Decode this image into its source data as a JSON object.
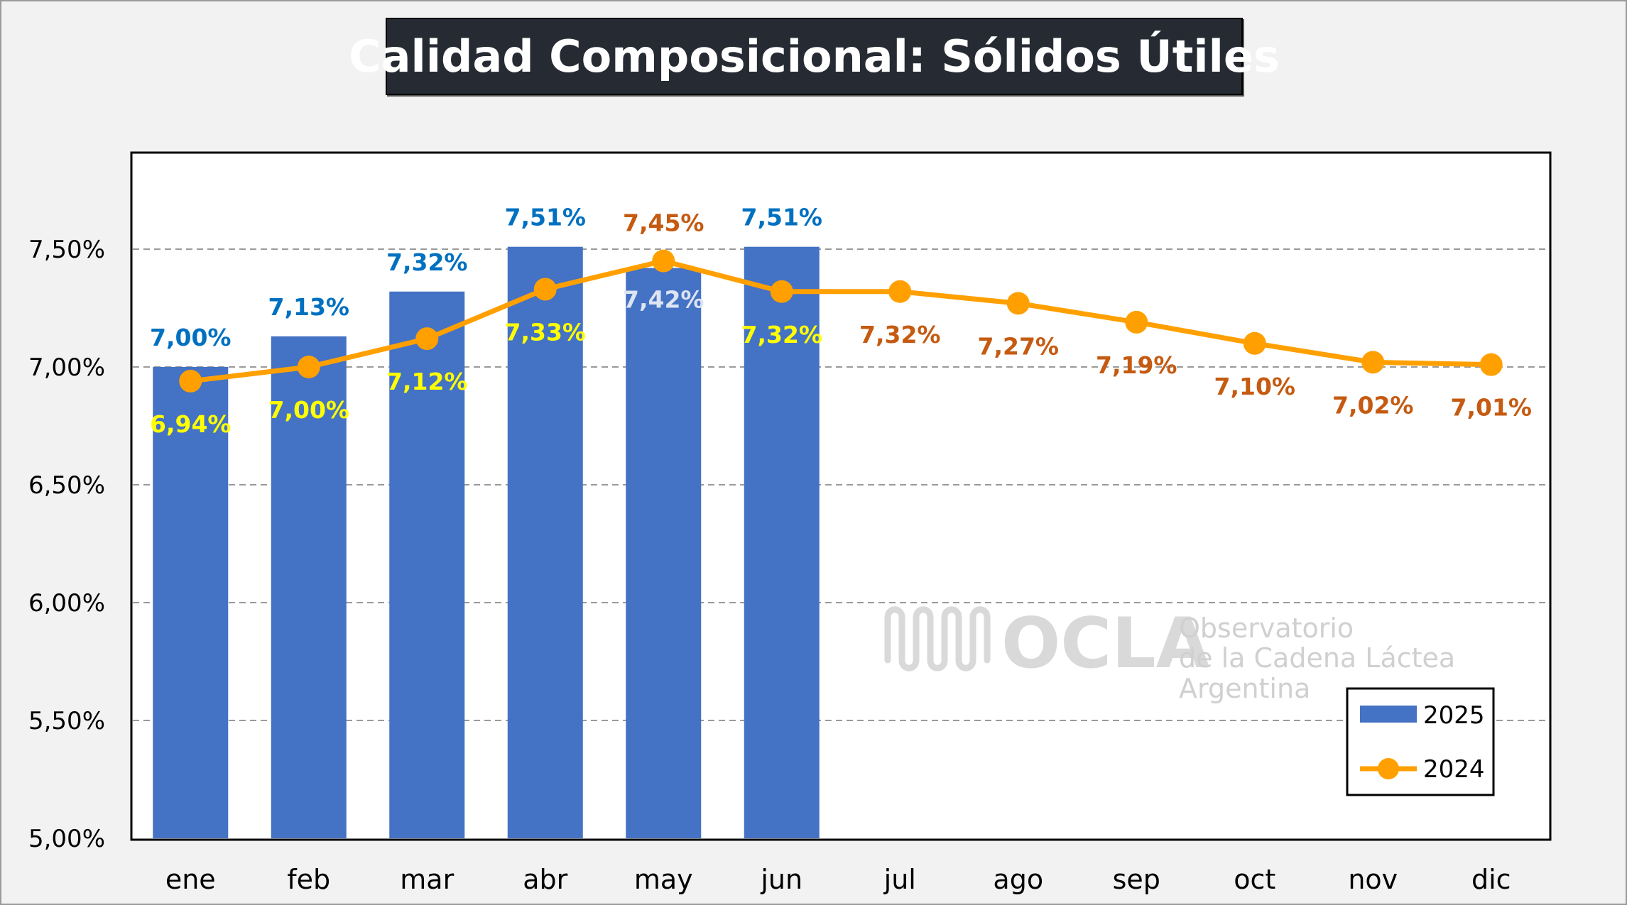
{
  "title": "Calidad Composicional: Sólidos Útiles",
  "watermark": {
    "brand": "OCLA",
    "line1": "Observatorio",
    "line2": "de la Cadena Láctea",
    "line3": "Argentina"
  },
  "colors": {
    "bar": "#4472c4",
    "line": "#ffa000",
    "bar_label": "#0070c0",
    "line_label_inside": "#ffff00",
    "line_label_outside": "#c55a11",
    "grid": "#9a9a9a"
  },
  "chart_data": {
    "type": "bar",
    "categories": [
      "ene",
      "feb",
      "mar",
      "abr",
      "may",
      "jun",
      "jul",
      "ago",
      "sep",
      "oct",
      "nov",
      "dic"
    ],
    "series": [
      {
        "name": "2025",
        "type": "bar",
        "values": [
          7.0,
          7.13,
          7.32,
          7.51,
          7.42,
          7.51,
          null,
          null,
          null,
          null,
          null,
          null
        ],
        "labels": [
          "7,00%",
          "7,13%",
          "7,32%",
          "7,51%",
          "7,42%",
          "7,51%",
          "",
          "",
          "",
          "",
          "",
          ""
        ]
      },
      {
        "name": "2024",
        "type": "line",
        "values": [
          6.94,
          7.0,
          7.12,
          7.33,
          7.45,
          7.32,
          7.32,
          7.27,
          7.19,
          7.1,
          7.02,
          7.01
        ],
        "labels": [
          "6,94%",
          "7,00%",
          "7,12%",
          "7,33%",
          "7,45%",
          "7,32%",
          "7,32%",
          "7,27%",
          "7,19%",
          "7,10%",
          "7,02%",
          "7,01%"
        ]
      }
    ],
    "y_ticks": [
      "5,00%",
      "5,50%",
      "6,00%",
      "6,50%",
      "7,00%",
      "7,50%"
    ],
    "ylim": [
      5.0,
      7.9
    ],
    "grid": true,
    "legend_position": "bottom-right"
  }
}
